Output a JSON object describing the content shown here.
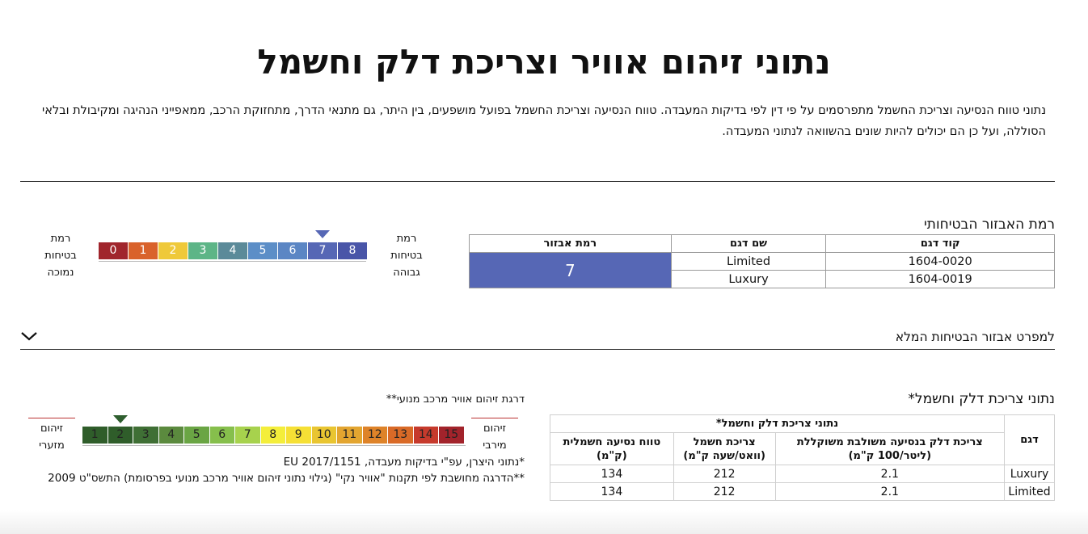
{
  "page": {
    "title": "נתוני זיהום אוויר וצריכת דלק וחשמל",
    "intro": "נתוני טווח הנסיעה וצריכת החשמל מתפרסמים על פי דין לפי בדיקות המעבדה. טווח הנסיעה וצריכת החשמל בפועל מושפעים, בין היתר, גם מתנאי הדרך, מתחזוקת הרכב, ממאפייני הנהיגה ומקיבולת ובלאי הסוללה, ועל כן הם יכולים להיות שונים בהשוואה לנתוני המעבדה."
  },
  "safety": {
    "heading": "רמת האבזור הבטיחותי",
    "headers": [
      "קוד דגם",
      "שם דגם",
      "רמת אבזור"
    ],
    "rows": [
      {
        "code": "1604-0020",
        "name": "Limited"
      },
      {
        "code": "1604-0019",
        "name": "Luxury"
      }
    ],
    "level": "7",
    "level_color": "#5667b5",
    "scale": {
      "high_label": "רמת בטיחות גבוהה",
      "low_label": "רמת בטיחות נמוכה",
      "selected": 7,
      "cells": [
        {
          "label": "0",
          "color": "#a0252c"
        },
        {
          "label": "1",
          "color": "#d9622b"
        },
        {
          "label": "2",
          "color": "#efc93a"
        },
        {
          "label": "3",
          "color": "#5db587"
        },
        {
          "label": "4",
          "color": "#5b8a99"
        },
        {
          "label": "5",
          "color": "#5c8ec7"
        },
        {
          "label": "6",
          "color": "#5b86c4"
        },
        {
          "label": "7",
          "color": "#5667b5"
        },
        {
          "label": "8",
          "color": "#4955a8"
        }
      ]
    },
    "details_label": "למפרט אבזור הבטיחות המלא"
  },
  "fuel": {
    "heading": "נתוני צריכת דלק וחשמל*",
    "group_header": "נתוני צריכת דלק וחשמל*",
    "headers": {
      "model": "דגם",
      "fuel": "צריכת דלק בנסיעה משולבת משוקללת (ליטר/100 ק\"מ)",
      "elec": "צריכת חשמל (וואט/שעה ק\"מ)",
      "range": "טווח נסיעה חשמלית (ק\"מ)"
    },
    "rows": [
      {
        "model": "Luxury",
        "fuel": "2.1",
        "elec": "212",
        "range": "134"
      },
      {
        "model": "Limited",
        "fuel": "2.1",
        "elec": "212",
        "range": "134"
      }
    ]
  },
  "pollution": {
    "title": "דרגת זיהום אוויר מרכב מנועי**",
    "low_label": "זיהום מזערי",
    "high_label": "זיהום מירבי",
    "selected": 2,
    "cells": [
      {
        "label": "1",
        "color": "#2f5d2a"
      },
      {
        "label": "2",
        "color": "#2f5d2a"
      },
      {
        "label": "3",
        "color": "#3f6f35"
      },
      {
        "label": "4",
        "color": "#5b8a3e"
      },
      {
        "label": "5",
        "color": "#6aa544"
      },
      {
        "label": "6",
        "color": "#86bf4c"
      },
      {
        "label": "7",
        "color": "#a7d24d"
      },
      {
        "label": "8",
        "color": "#f4ee3b"
      },
      {
        "label": "9",
        "color": "#f6e035"
      },
      {
        "label": "10",
        "color": "#e9c531"
      },
      {
        "label": "11",
        "color": "#e3a530"
      },
      {
        "label": "12",
        "color": "#de8329"
      },
      {
        "label": "13",
        "color": "#d96a27"
      },
      {
        "label": "14",
        "color": "#c63a2c"
      },
      {
        "label": "15",
        "color": "#a2232b"
      }
    ],
    "note1": "*נתוני היצרן, עפ\"י בדיקות מעבדה, EU 2017/1151",
    "note2": "**הדרגה מחושבת לפי תקנות \"אוויר נקי\" (גילוי נתוני זיהום אוויר מרכב מנועי בפרסומת) התשס\"ט 2009"
  },
  "icons": {
    "chevron": "chevron-down-icon",
    "pointer": "triangle-pointer-icon"
  }
}
